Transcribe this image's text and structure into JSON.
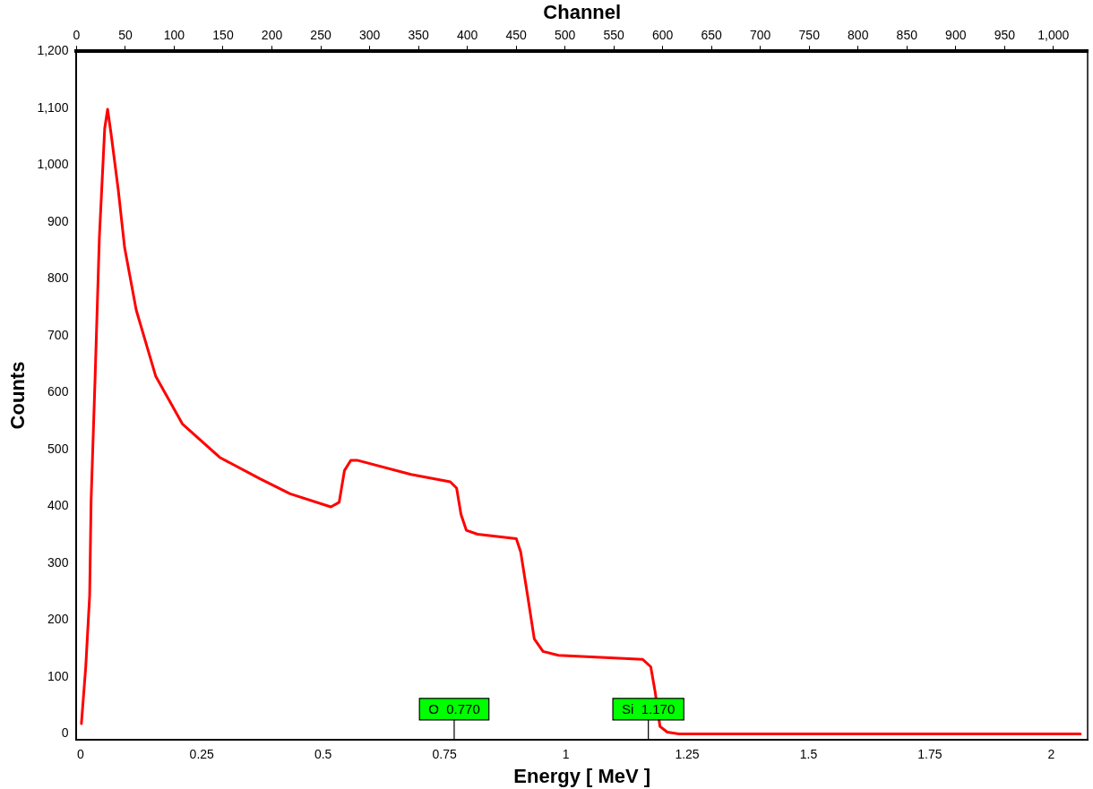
{
  "chart_data": {
    "type": "line",
    "xlabel": "Energy [ MeV ]",
    "ylabel": "Counts",
    "x2label": "Channel",
    "xlim": [
      -0.008,
      2.075
    ],
    "xticks": [
      0,
      0.25,
      0.5,
      0.75,
      1,
      1.25,
      1.5,
      1.75,
      2
    ],
    "x2lim": [
      0,
      1035
    ],
    "x2ticks": [
      0,
      50,
      100,
      150,
      200,
      250,
      300,
      350,
      400,
      450,
      500,
      550,
      600,
      650,
      700,
      750,
      800,
      850,
      900,
      950,
      {
        "value": 1000,
        "label": "1,000"
      }
    ],
    "ylim": [
      -10,
      1200
    ],
    "yticks": [
      0,
      100,
      200,
      300,
      400,
      500,
      600,
      700,
      800,
      900,
      {
        "value": 1000,
        "label": "1,000"
      },
      {
        "value": 1100,
        "label": "1,100"
      },
      {
        "value": 1200,
        "label": "1,200"
      }
    ],
    "grid": false,
    "legend": false,
    "marker": "none",
    "line_style": "solid",
    "series": [
      {
        "color": "#ff0000",
        "x": [
          0.002,
          0.011,
          0.019,
          0.022,
          0.03,
          0.039,
          0.05,
          0.056,
          0.063,
          0.078,
          0.091,
          0.115,
          0.155,
          0.21,
          0.287,
          0.371,
          0.432,
          0.516,
          0.533,
          0.544,
          0.557,
          0.57,
          0.681,
          0.762,
          0.775,
          0.784,
          0.795,
          0.818,
          0.898,
          0.907,
          0.92,
          0.935,
          0.953,
          0.985,
          1.158,
          1.175,
          1.184,
          1.194,
          1.209,
          1.233,
          1.4,
          1.6,
          1.8,
          2.06
        ],
        "values": [
          18,
          118,
          243,
          410,
          620,
          872,
          1064,
          1098,
          1056,
          956,
          855,
          745,
          629,
          545,
          486,
          448,
          422,
          399,
          407,
          463,
          481,
          481,
          456,
          443,
          432,
          386,
          358,
          351,
          343,
          320,
          250,
          167,
          145,
          138,
          131,
          118,
          74,
          13,
          3,
          0,
          0,
          0,
          0,
          0
        ]
      }
    ],
    "ref_lines": [
      {
        "axis": "x",
        "value": 0.77,
        "label": "O  0.770",
        "color": "#000000"
      },
      {
        "axis": "x",
        "value": 1.17,
        "label": "Si  1.170",
        "color": "#000000"
      }
    ]
  }
}
